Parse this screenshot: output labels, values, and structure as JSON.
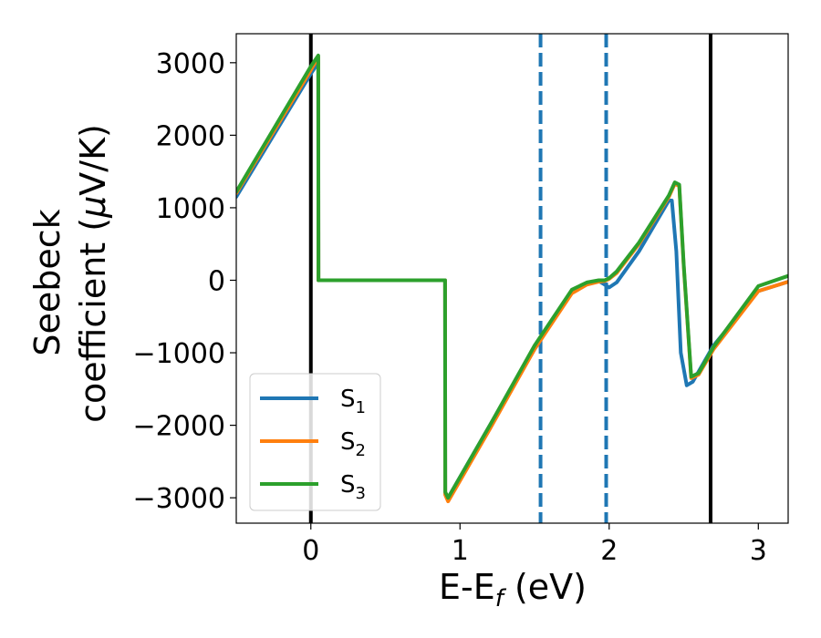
{
  "chart_data": {
    "type": "line",
    "xlabel": "E-E",
    "xlabel_sub": "f",
    "xlabel_unit": " (eV)",
    "ylabel_line1": "Seebeck",
    "ylabel_line2": "coefficient  (",
    "ylabel_mu": "μ",
    "ylabel_unit": "V/K)",
    "xlim": [
      -0.5,
      3.2
    ],
    "ylim": [
      -3350,
      3400
    ],
    "xticks": [
      0,
      1,
      2,
      3
    ],
    "xtick_labels": [
      "0",
      "1",
      "2",
      "3"
    ],
    "yticks": [
      -3000,
      -2000,
      -1000,
      0,
      1000,
      2000,
      3000
    ],
    "ytick_labels": [
      "−3000",
      "−2000",
      "−1000",
      "0",
      "1000",
      "2000",
      "3000"
    ],
    "grid": false,
    "legend_position": "lower-left",
    "vlines": [
      {
        "x": 0.0,
        "style": "solid",
        "color": "#000000"
      },
      {
        "x": 1.54,
        "style": "dashed",
        "color": "#1f77b4"
      },
      {
        "x": 1.98,
        "style": "dashed",
        "color": "#1f77b4"
      },
      {
        "x": 2.68,
        "style": "solid",
        "color": "#000000"
      }
    ],
    "series": [
      {
        "name": "S",
        "sub": "1",
        "color": "#1f77b4",
        "x": [
          -0.5,
          0.0,
          0.05,
          0.051,
          0.9,
          0.901,
          0.92,
          1.2,
          1.5,
          1.75,
          1.85,
          1.93,
          1.97,
          2.0,
          2.05,
          2.2,
          2.4,
          2.42,
          2.45,
          2.48,
          2.52,
          2.56,
          2.7,
          3.0,
          3.2
        ],
        "y": [
          1150,
          2850,
          3000,
          0,
          0,
          -2950,
          -3000,
          -2000,
          -950,
          -150,
          -50,
          -10,
          -60,
          -100,
          -30,
          400,
          1100,
          1100,
          400,
          -1000,
          -1450,
          -1400,
          -900,
          -150,
          -20
        ]
      },
      {
        "name": "S",
        "sub": "2",
        "color": "#ff7f0e",
        "x": [
          -0.5,
          0.0,
          0.05,
          0.051,
          0.9,
          0.901,
          0.92,
          1.2,
          1.5,
          1.75,
          1.85,
          1.93,
          1.97,
          2.0,
          2.05,
          2.2,
          2.4,
          2.44,
          2.47,
          2.5,
          2.55,
          2.6,
          2.7,
          3.0,
          3.2
        ],
        "y": [
          1200,
          2900,
          3080,
          0,
          0,
          -2960,
          -3050,
          -2050,
          -950,
          -180,
          -60,
          -20,
          -10,
          20,
          100,
          500,
          1150,
          1330,
          1300,
          200,
          -1350,
          -1300,
          -950,
          -150,
          -20
        ]
      },
      {
        "name": "S",
        "sub": "3",
        "color": "#2ca02c",
        "x": [
          -0.5,
          0.0,
          0.05,
          0.051,
          0.9,
          0.901,
          0.92,
          1.2,
          1.5,
          1.75,
          1.85,
          1.93,
          1.97,
          2.0,
          2.05,
          2.2,
          2.4,
          2.44,
          2.47,
          2.5,
          2.55,
          2.6,
          2.7,
          3.0,
          3.2
        ],
        "y": [
          1220,
          2950,
          3100,
          0,
          0,
          -2920,
          -3000,
          -2000,
          -900,
          -130,
          -30,
          0,
          0,
          30,
          120,
          520,
          1170,
          1350,
          1320,
          220,
          -1330,
          -1280,
          -920,
          -80,
          60
        ]
      }
    ]
  }
}
